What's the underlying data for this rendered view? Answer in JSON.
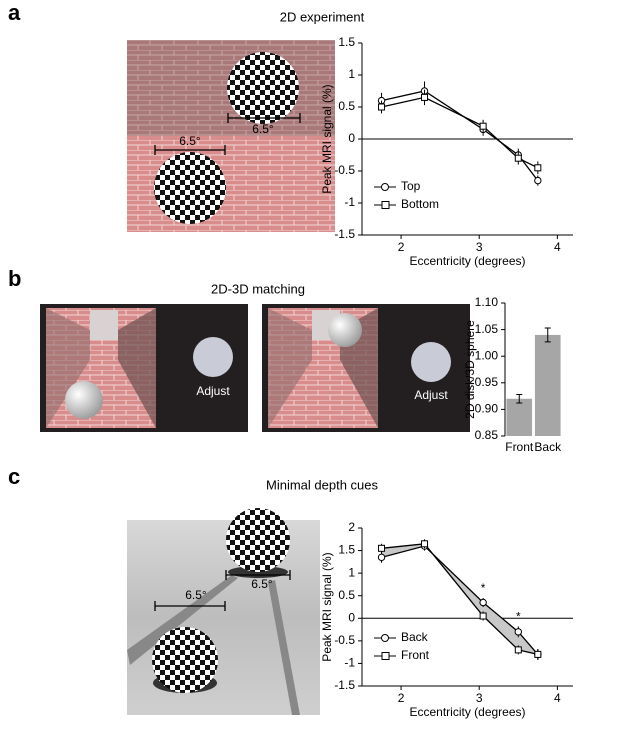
{
  "panels": [
    {
      "label": "a",
      "title": "2D experiment",
      "image_labels": [
        "6.5°",
        "6.5°"
      ]
    },
    {
      "label": "b",
      "title": "2D-3D matching",
      "image_labels": [
        "Adjust",
        "Adjust"
      ]
    },
    {
      "label": "c",
      "title": "Minimal depth cues",
      "image_labels": [
        "6.5°",
        "6.5°"
      ]
    }
  ],
  "chart_data": [
    {
      "type": "line",
      "xlabel": "Eccentricity (degrees)",
      "ylabel": "Peak MRI signal (%)",
      "x": [
        1.75,
        2.3,
        3.05,
        3.5,
        3.75
      ],
      "xlim": [
        1.5,
        4.2
      ],
      "xticks": [
        2,
        3,
        4
      ],
      "ylim": [
        -1.5,
        1.5
      ],
      "yticks": [
        -1.5,
        -1,
        -0.5,
        0,
        0.5,
        1,
        1.5
      ],
      "zero_line": true,
      "legend": "lower left",
      "series": [
        {
          "name": "Top",
          "color": "#000000",
          "marker": "circle",
          "values": [
            0.6,
            0.75,
            0.15,
            -0.25,
            -0.65
          ],
          "errors": [
            0.12,
            0.15,
            0.1,
            0.1,
            0.08
          ]
        },
        {
          "name": "Bottom",
          "color": "#000000",
          "marker": "square",
          "values": [
            0.5,
            0.65,
            0.2,
            -0.3,
            -0.45
          ],
          "errors": [
            0.1,
            0.12,
            0.1,
            0.1,
            0.1
          ]
        }
      ]
    },
    {
      "type": "bar",
      "ylabel": "2D disk/3D sphere",
      "categories": [
        "Front",
        "Back"
      ],
      "color": "#a6a6a6",
      "values": [
        0.92,
        1.04
      ],
      "errors": [
        0.008,
        0.013
      ],
      "ylim": [
        0.85,
        1.1
      ],
      "yticks": [
        0.85,
        {
          "value": 0.9,
          "label": "0.90"
        },
        0.95,
        {
          "value": 1,
          "label": "1.00"
        },
        1.05,
        {
          "value": 1.1,
          "label": "1.10"
        }
      ]
    },
    {
      "type": "line",
      "xlabel": "Eccentricity (degrees)",
      "ylabel": "Peak MRI signal (%)",
      "x": [
        1.75,
        2.3,
        3.05,
        3.5,
        3.75
      ],
      "xlim": [
        1.5,
        4.2
      ],
      "xticks": [
        2,
        3,
        4
      ],
      "ylim": [
        -1.5,
        2
      ],
      "yticks": [
        -1.5,
        -1,
        -0.5,
        0,
        0.5,
        1,
        1.5,
        2
      ],
      "zero_line": true,
      "legend": "lower left",
      "fill_between": "#c8c8c8",
      "annotations": [
        "*",
        "*"
      ],
      "series": [
        {
          "name": "Back",
          "color": "#000000",
          "marker": "circle",
          "values": [
            1.35,
            1.6,
            0.35,
            -0.3,
            -0.8
          ],
          "errors": [
            0.12,
            0.1,
            0.1,
            0.12,
            0.12
          ]
        },
        {
          "name": "Front",
          "color": "#000000",
          "marker": "square",
          "values": [
            1.55,
            1.65,
            0.05,
            -0.7,
            -0.8
          ],
          "errors": [
            0.1,
            0.1,
            0.1,
            0.1,
            0.12
          ]
        }
      ]
    }
  ]
}
